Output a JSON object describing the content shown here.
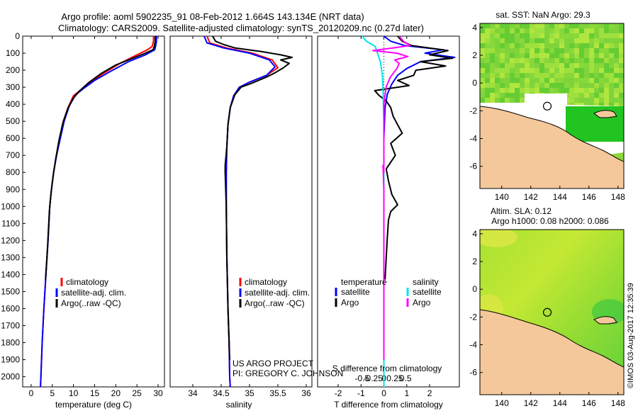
{
  "header": {
    "line1": "Argo profile: aoml 5902235_91 08-Feb-2012 1.664S 143.134E (NRT data)",
    "line2": "Climatology: CARS2009. Satellite-adjusted climatology: synTS_20120209.nc (0.27d later)"
  },
  "colors": {
    "climatology": "#ff0000",
    "satellite": "#0000ff",
    "argo": "#000000",
    "sal_satellite": "#00e5ee",
    "sal_argo": "#ff00ff",
    "land": "#f4c89a",
    "ocean_green": "#33cc33"
  },
  "chart_data": [
    {
      "type": "line",
      "panel": "temperature",
      "xlabel": "temperature (deg C)",
      "ylabel": "",
      "xlim": [
        -2,
        31.5
      ],
      "ylim": [
        2060,
        0
      ],
      "xticks": [
        "0",
        "5",
        "10",
        "15",
        "20",
        "25",
        "30"
      ],
      "xtick_values": [
        0,
        5,
        10,
        15,
        20,
        25,
        30
      ],
      "yticks": [
        "0",
        "100",
        "200",
        "300",
        "400",
        "500",
        "600",
        "700",
        "800",
        "900",
        "1000",
        "1100",
        "1200",
        "1300",
        "1400",
        "1500",
        "1600",
        "1700",
        "1800",
        "1900",
        "2000"
      ],
      "ytick_values": [
        0,
        100,
        200,
        300,
        400,
        500,
        600,
        700,
        800,
        900,
        1000,
        1100,
        1200,
        1300,
        1400,
        1500,
        1600,
        1700,
        1800,
        1900,
        2000
      ],
      "legend": [
        "climatology",
        "satellite-adj. clim.",
        "Argo(..raw -QC)"
      ],
      "series": [
        {
          "name": "climatology",
          "color": "#ff0000",
          "points": [
            [
              28.9,
              0
            ],
            [
              28.9,
              30
            ],
            [
              28.6,
              60
            ],
            [
              27.5,
              80
            ],
            [
              25,
              110
            ],
            [
              21,
              160
            ],
            [
              17,
              220
            ],
            [
              14,
              270
            ],
            [
              12,
              310
            ],
            [
              10,
              350
            ],
            [
              8.7,
              420
            ],
            [
              7.6,
              500
            ],
            [
              6.8,
              600
            ],
            [
              6,
              700
            ],
            [
              5.3,
              800
            ],
            [
              4.8,
              900
            ],
            [
              4.4,
              1000
            ],
            [
              4,
              1200
            ],
            [
              3.5,
              1400
            ],
            [
              3,
              1600
            ],
            [
              2.6,
              1800
            ],
            [
              2.3,
              2000
            ],
            [
              2.2,
              2060
            ]
          ]
        },
        {
          "name": "satellite-adj. clim.",
          "color": "#0000ff",
          "points": [
            [
              29.6,
              0
            ],
            [
              29.6,
              30
            ],
            [
              29.4,
              60
            ],
            [
              29.2,
              80
            ],
            [
              27,
              110
            ],
            [
              23,
              150
            ],
            [
              18.5,
              210
            ],
            [
              15,
              260
            ],
            [
              12.5,
              305
            ],
            [
              10.5,
              345
            ],
            [
              9,
              410
            ],
            [
              7.8,
              500
            ],
            [
              6.9,
              600
            ],
            [
              6,
              700
            ],
            [
              5.3,
              800
            ],
            [
              4.8,
              900
            ],
            [
              4.4,
              1000
            ],
            [
              4,
              1200
            ],
            [
              3.5,
              1400
            ],
            [
              3,
              1600
            ],
            [
              2.6,
              1800
            ],
            [
              2.3,
              2000
            ],
            [
              2.2,
              2060
            ]
          ]
        },
        {
          "name": "Argo(..raw -QC)",
          "color": "#000000",
          "points": [
            [
              29.3,
              0
            ],
            [
              29.3,
              30
            ],
            [
              29.1,
              60
            ],
            [
              28.8,
              80
            ],
            [
              27,
              100
            ],
            [
              24,
              130
            ],
            [
              20,
              170
            ],
            [
              16.5,
              220
            ],
            [
              13.5,
              275
            ],
            [
              11.5,
              320
            ],
            [
              9.8,
              370
            ],
            [
              8.6,
              430
            ],
            [
              7.5,
              510
            ],
            [
              6.6,
              610
            ],
            [
              5.8,
              720
            ],
            [
              5.2,
              820
            ],
            [
              4.7,
              920
            ],
            [
              4.3,
              1030
            ],
            [
              3.9,
              1230
            ],
            [
              3.4,
              1430
            ]
          ]
        }
      ]
    },
    {
      "type": "line",
      "panel": "salinity",
      "xlabel": "salinity",
      "xlim": [
        33.6,
        36.1
      ],
      "ylim": [
        2060,
        0
      ],
      "xticks": [
        "34",
        "34.5",
        "35",
        "35.5",
        "36"
      ],
      "xtick_values": [
        34,
        34.5,
        35,
        35.5,
        36
      ],
      "legend": [
        "climatology",
        "satellite-adj. clim.",
        "Argo(..raw -QC)"
      ],
      "series": [
        {
          "name": "climatology",
          "color": "#ff0000",
          "points": [
            [
              34.25,
              0
            ],
            [
              34.3,
              40
            ],
            [
              34.6,
              70
            ],
            [
              35.05,
              100
            ],
            [
              35.4,
              140
            ],
            [
              35.5,
              185
            ],
            [
              35.3,
              230
            ],
            [
              35,
              270
            ],
            [
              34.82,
              300
            ],
            [
              34.72,
              350
            ],
            [
              34.66,
              420
            ],
            [
              34.62,
              520
            ],
            [
              34.6,
              650
            ],
            [
              34.59,
              800
            ],
            [
              34.59,
              1000
            ],
            [
              34.6,
              1300
            ],
            [
              34.62,
              1600
            ],
            [
              34.64,
              1800
            ],
            [
              34.65,
              2000
            ],
            [
              34.66,
              2060
            ]
          ]
        },
        {
          "name": "satellite-adj. clim.",
          "color": "#0000ff",
          "points": [
            [
              34.2,
              0
            ],
            [
              34.25,
              40
            ],
            [
              34.55,
              70
            ],
            [
              35,
              100
            ],
            [
              35.35,
              140
            ],
            [
              35.45,
              180
            ],
            [
              35.3,
              230
            ],
            [
              35,
              270
            ],
            [
              34.82,
              300
            ],
            [
              34.72,
              350
            ],
            [
              34.66,
              420
            ],
            [
              34.62,
              520
            ],
            [
              34.6,
              650
            ],
            [
              34.59,
              800
            ],
            [
              34.59,
              1000
            ],
            [
              34.6,
              1300
            ],
            [
              34.62,
              1600
            ],
            [
              34.64,
              1800
            ],
            [
              34.65,
              2000
            ],
            [
              34.66,
              2060
            ]
          ]
        },
        {
          "name": "Argo(..raw -QC)",
          "color": "#000000",
          "points": [
            [
              34.35,
              0
            ],
            [
              34.4,
              30
            ],
            [
              34.55,
              50
            ],
            [
              34.75,
              70
            ],
            [
              35.2,
              90
            ],
            [
              35.55,
              110
            ],
            [
              35.75,
              125
            ],
            [
              35.55,
              140
            ],
            [
              35.7,
              160
            ],
            [
              35.6,
              185
            ],
            [
              35.45,
              215
            ],
            [
              35.3,
              240
            ],
            [
              35.05,
              275
            ],
            [
              34.85,
              300
            ],
            [
              34.74,
              345
            ],
            [
              34.66,
              420
            ],
            [
              34.62,
              520
            ],
            [
              34.6,
              650
            ],
            [
              34.57,
              760
            ],
            [
              34.57,
              800
            ],
            [
              34.59,
              1000
            ],
            [
              34.6,
              1300
            ],
            [
              34.62,
              1600
            ],
            [
              34.64,
              1800
            ],
            [
              34.65,
              1900
            ]
          ]
        }
      ]
    },
    {
      "type": "line",
      "panel": "difference",
      "xlabel": "T difference from climatology",
      "xlabel_top": "S difference from climatology",
      "xlim": [
        -2.9,
        3.3
      ],
      "ylim": [
        2060,
        0
      ],
      "xticks": [
        "-2",
        "-1",
        "0",
        "1",
        "2"
      ],
      "xtick_values": [
        -2,
        -1,
        0,
        1,
        2
      ],
      "s_xticks": [
        "-0.5",
        "-0.25",
        "0",
        "0.25",
        "0.5"
      ],
      "s_xtick_values": [
        -0.5,
        -0.25,
        0,
        0.25,
        0.5
      ],
      "legend_temperature_title": "temperature",
      "legend_salinity_title": "salinity",
      "legend_temperature": [
        "satellite",
        "Argo"
      ],
      "legend_salinity": [
        "satellite",
        "Argo"
      ],
      "series": [
        {
          "name": "T satellite",
          "color": "#0000ff",
          "points": [
            [
              0,
              0
            ],
            [
              0.3,
              30
            ],
            [
              0.9,
              55
            ],
            [
              2.6,
              80
            ],
            [
              1.8,
              100
            ],
            [
              3.1,
              125
            ],
            [
              1.6,
              150
            ],
            [
              1.0,
              190
            ],
            [
              0.6,
              230
            ],
            [
              0.35,
              280
            ],
            [
              0.15,
              340
            ],
            [
              0.05,
              420
            ],
            [
              0,
              600
            ],
            [
              0,
              1000
            ],
            [
              0,
              1500
            ],
            [
              0,
              2060
            ]
          ]
        },
        {
          "name": "T Argo",
          "color": "#000000",
          "points": [
            [
              0.6,
              0
            ],
            [
              0.8,
              30
            ],
            [
              1.2,
              55
            ],
            [
              2.8,
              85
            ],
            [
              2.0,
              110
            ],
            [
              3.0,
              130
            ],
            [
              1.6,
              150
            ],
            [
              2.7,
              175
            ],
            [
              1.4,
              200
            ],
            [
              1.3,
              230
            ],
            [
              0.6,
              260
            ],
            [
              1.1,
              290
            ],
            [
              -0.4,
              320
            ],
            [
              -0.2,
              350
            ],
            [
              0.1,
              380
            ],
            [
              0.3,
              420
            ],
            [
              0.4,
              470
            ],
            [
              0.6,
              520
            ],
            [
              0.8,
              570
            ],
            [
              0.3,
              630
            ],
            [
              0.5,
              700
            ],
            [
              0.1,
              780
            ],
            [
              0.2,
              850
            ],
            [
              0.35,
              930
            ],
            [
              0.6,
              990
            ],
            [
              0.3,
              1030
            ],
            [
              0.2,
              1080
            ],
            [
              0.15,
              1180
            ],
            [
              0.1,
              1300
            ],
            [
              0.05,
              1430
            ]
          ]
        },
        {
          "name": "S satellite",
          "color": "#00e5ee",
          "points": [
            [
              -0.5,
              0
            ],
            [
              -0.4,
              30
            ],
            [
              -0.2,
              60
            ],
            [
              -0.15,
              100
            ],
            [
              -0.08,
              150
            ],
            [
              -0.04,
              220
            ],
            [
              -0.02,
              300
            ],
            [
              0,
              500
            ],
            [
              0,
              1000
            ],
            [
              0,
              1500
            ],
            [
              0,
              2060
            ]
          ]
        },
        {
          "name": "S Argo",
          "color": "#ff00ff",
          "points": [
            [
              0.35,
              0
            ],
            [
              0.45,
              30
            ],
            [
              0.6,
              55
            ],
            [
              0.2,
              70
            ],
            [
              -0.25,
              85
            ],
            [
              0.3,
              100
            ],
            [
              0.55,
              120
            ],
            [
              0.25,
              140
            ],
            [
              0.35,
              160
            ],
            [
              0.3,
              190
            ],
            [
              0.15,
              240
            ],
            [
              0.05,
              300
            ],
            [
              0,
              400
            ],
            [
              0,
              600
            ],
            [
              0,
              800
            ],
            [
              -0.02,
              760
            ],
            [
              0,
              900
            ],
            [
              0,
              1300
            ],
            [
              0,
              1600
            ],
            [
              0,
              1900
            ]
          ]
        }
      ]
    }
  ],
  "credits": {
    "line1": "US ARGO PROJECT",
    "line2": "PI: GREGORY C. JOHNSON"
  },
  "map_sst": {
    "title": "sat. SST: NaN Argo: 29.3",
    "xticks": [
      "140",
      "142",
      "144",
      "146",
      "148"
    ],
    "xtick_values": [
      140,
      142,
      144,
      146,
      148
    ],
    "yticks": [
      "4",
      "2",
      "0",
      "-2",
      "-4",
      "-6"
    ],
    "ytick_values": [
      4,
      2,
      0,
      -2,
      -4,
      -6
    ],
    "xlim": [
      138.5,
      148.4
    ],
    "ylim": [
      -7.6,
      4.3
    ],
    "argo_lon": 143.134,
    "argo_lat": -1.664
  },
  "map_sla": {
    "title1": "Altim. SLA: 0.12",
    "title2": "Argo h1000: 0.08 h2000: 0.086",
    "xticks": [
      "140",
      "142",
      "144",
      "146",
      "148"
    ],
    "xtick_values": [
      140,
      142,
      144,
      146,
      148
    ],
    "yticks": [
      "4",
      "2",
      "0",
      "-2",
      "-4",
      "-6"
    ],
    "ytick_values": [
      4,
      2,
      0,
      -2,
      -4,
      -6
    ],
    "xlim": [
      138.5,
      148.4
    ],
    "ylim": [
      -7.6,
      4.3
    ],
    "argo_lon": 143.134,
    "argo_lat": -1.664
  },
  "footer_stamp": "©IMOS 03-Aug-2017 12:35:39"
}
